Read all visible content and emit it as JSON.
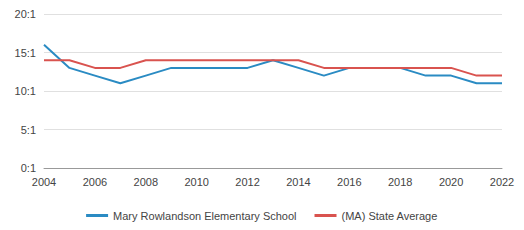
{
  "chart_data": {
    "type": "line",
    "x": [
      2004,
      2005,
      2006,
      2007,
      2008,
      2009,
      2010,
      2011,
      2012,
      2013,
      2014,
      2015,
      2016,
      2017,
      2018,
      2019,
      2020,
      2021,
      2022
    ],
    "series": [
      {
        "name": "Mary Rowlandson Elementary School",
        "color": "#2a8bc3",
        "values": [
          16,
          13,
          12,
          11,
          12,
          13,
          13,
          13,
          13,
          14,
          13,
          12,
          13,
          13,
          13,
          12,
          12,
          11,
          11
        ]
      },
      {
        "name": "(MA) State Average",
        "color": "#d9534f",
        "values": [
          14,
          14,
          13,
          13,
          14,
          14,
          14,
          14,
          14,
          14,
          14,
          13,
          13,
          13,
          13,
          13,
          13,
          12,
          12
        ]
      }
    ],
    "xlim": [
      2004,
      2022
    ],
    "xticks": [
      2004,
      2006,
      2008,
      2010,
      2012,
      2014,
      2016,
      2018,
      2020,
      2022
    ],
    "ylim": [
      0,
      20
    ],
    "yticks": [
      {
        "value": 0,
        "label": "0:1"
      },
      {
        "value": 5,
        "label": "5:1"
      },
      {
        "value": 10,
        "label": "10:1"
      },
      {
        "value": 15,
        "label": "15:1"
      },
      {
        "value": 20,
        "label": "20:1"
      }
    ],
    "grid": true,
    "legend": "bottom"
  }
}
